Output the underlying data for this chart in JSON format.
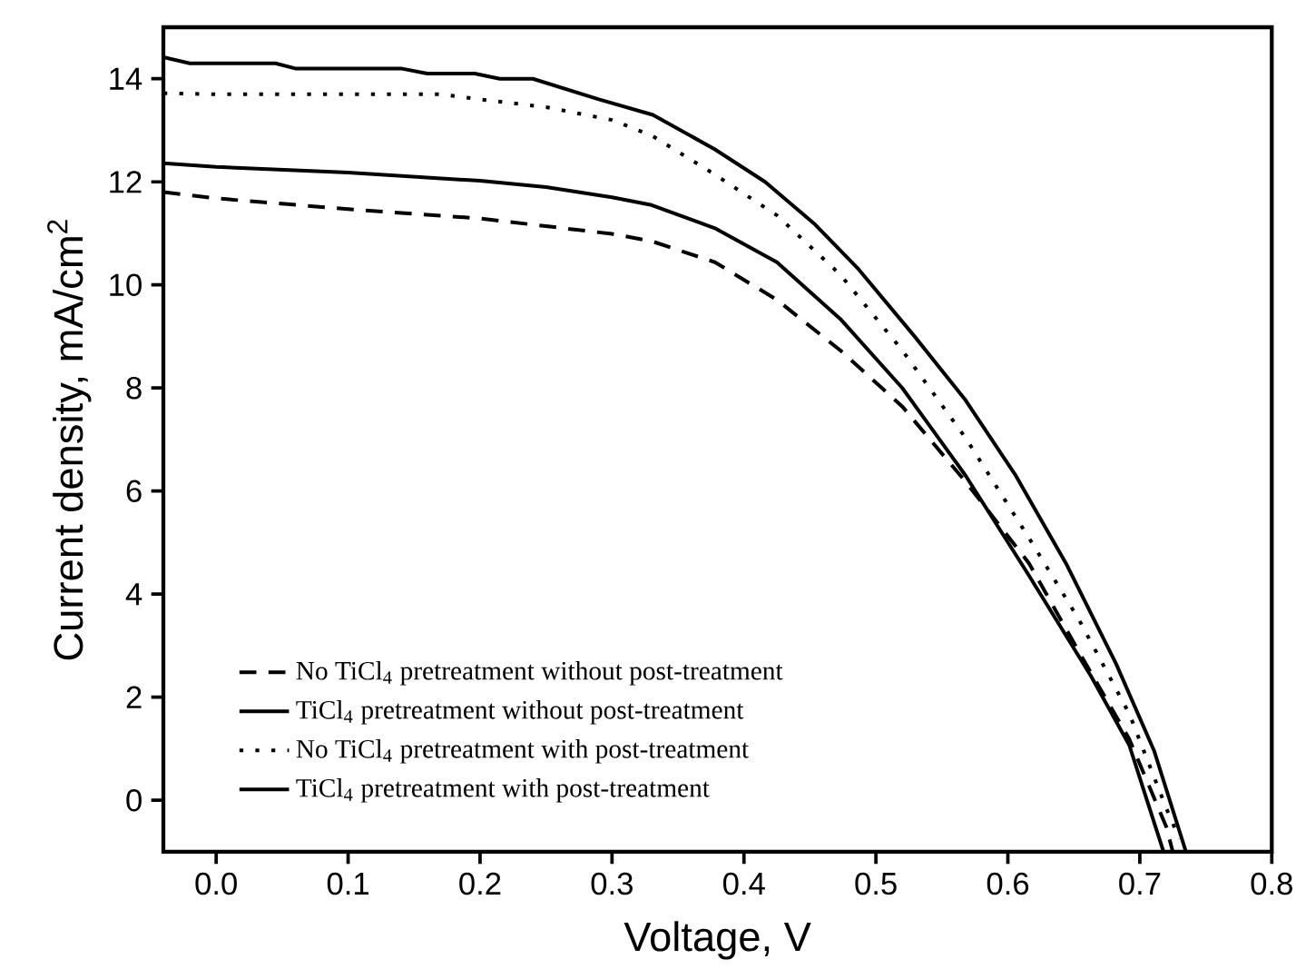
{
  "chart_data": {
    "type": "line",
    "xlabel": "Voltage, V",
    "ylabel": "Current density, mA/cm$^{2}$",
    "xlim": [
      -0.04,
      0.8
    ],
    "ylim": [
      -1,
      15
    ],
    "xticks": [
      {
        "value": 0,
        "label": "0.0"
      },
      0.1,
      0.2,
      0.3,
      0.4,
      0.5,
      0.6,
      0.7,
      0.8
    ],
    "yticks": [
      0,
      2,
      4,
      6,
      8,
      10,
      12,
      14
    ],
    "legend": "bottom left",
    "grid": false,
    "marker": "none",
    "series": [
      {
        "name": "No TiCl$_{4}$ pretreatment without post-treatment",
        "color": "#000000",
        "line_style": "dashed",
        "x": [
          -0.04,
          0.0,
          0.1,
          0.2,
          0.25,
          0.3,
          0.33,
          0.378,
          0.425,
          0.473,
          0.52,
          0.568,
          0.616,
          0.659,
          0.692,
          0.72,
          0.725
        ],
        "values": [
          11.8,
          11.68,
          11.47,
          11.29,
          11.14,
          10.99,
          10.85,
          10.44,
          9.71,
          8.73,
          7.64,
          6.18,
          4.6,
          2.65,
          1.19,
          -0.51,
          -1.0
        ]
      },
      {
        "name": "TiCl$_{4}$ pretreatment without post-treatment",
        "color": "#000000",
        "line_style": "solid",
        "x": [
          -0.04,
          0.0,
          0.1,
          0.2,
          0.25,
          0.3,
          0.33,
          0.378,
          0.425,
          0.473,
          0.52,
          0.568,
          0.616,
          0.663,
          0.692,
          0.718
        ],
        "values": [
          12.36,
          12.29,
          12.18,
          12.02,
          11.9,
          11.7,
          11.55,
          11.1,
          10.44,
          9.34,
          8.0,
          6.3,
          4.36,
          2.41,
          1.07,
          -1.0
        ]
      },
      {
        "name": "No TiCl$_{4}$ pretreatment with post-treatment",
        "color": "#000000",
        "line_style": "dotted",
        "x": [
          -0.04,
          0.0,
          0.1,
          0.17,
          0.2,
          0.25,
          0.3,
          0.33,
          0.378,
          0.425,
          0.473,
          0.52,
          0.568,
          0.616,
          0.654,
          0.692,
          0.72,
          0.73
        ],
        "values": [
          13.72,
          13.7,
          13.7,
          13.7,
          13.6,
          13.45,
          13.2,
          12.9,
          12.14,
          11.35,
          10.2,
          8.73,
          7.03,
          5.09,
          3.5,
          1.68,
          -0.15,
          -0.75
        ]
      },
      {
        "name": "TiCl$_{4}$ pretreatment with post-treatment",
        "color": "#000000",
        "line_style": "solid",
        "x": [
          -0.04,
          -0.02,
          0.045,
          0.06,
          0.14,
          0.16,
          0.196,
          0.215,
          0.24,
          0.29,
          0.331,
          0.378,
          0.416,
          0.454,
          0.487,
          0.53,
          0.568,
          0.606,
          0.644,
          0.682,
          0.711,
          0.735
        ],
        "values": [
          14.42,
          14.3,
          14.3,
          14.2,
          14.2,
          14.1,
          14.1,
          14.0,
          14.0,
          13.6,
          13.3,
          12.63,
          12.0,
          11.17,
          10.3,
          8.98,
          7.76,
          6.3,
          4.6,
          2.65,
          0.95,
          -1.0
        ]
      }
    ]
  }
}
